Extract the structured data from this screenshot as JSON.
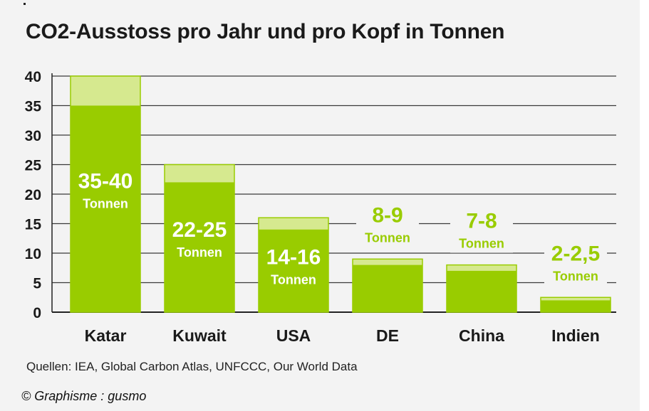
{
  "title": "CO2-Ausstoss pro Jahr und pro Kopf in Tonnen",
  "source": "Quellen: IEA, Global Carbon Atlas, UNFCCC, Our World Data",
  "credit": "© Graphisme : gusmo",
  "colors": {
    "bar": "#99cc00",
    "bar_top": "#d6e98f",
    "label_outside": "#99cc00",
    "label_inside": "#ffffff"
  },
  "chart_data": {
    "type": "bar",
    "categories": [
      "Katar",
      "Kuwait",
      "USA",
      "DE",
      "China",
      "Indien"
    ],
    "series": [
      {
        "values_low": [
          35,
          22,
          14,
          8,
          7,
          2
        ],
        "values_high": [
          40,
          25,
          16,
          9,
          8,
          2.5
        ]
      }
    ],
    "data_labels": [
      {
        "value": "35-40",
        "unit": "Tonnen"
      },
      {
        "value": "22-25",
        "unit": "Tonnen"
      },
      {
        "value": "14-16",
        "unit": "Tonnen"
      },
      {
        "value": "8-9",
        "unit": "Tonnen"
      },
      {
        "value": "7-8",
        "unit": "Tonnen"
      },
      {
        "value": "2-2,5",
        "unit": "Tonnen"
      }
    ],
    "y_ticks": [
      "0",
      "5",
      "10",
      "15",
      "20",
      "25",
      "30",
      "35",
      "40"
    ],
    "ylim": [
      0,
      40
    ],
    "grid": true,
    "legend": "none"
  }
}
